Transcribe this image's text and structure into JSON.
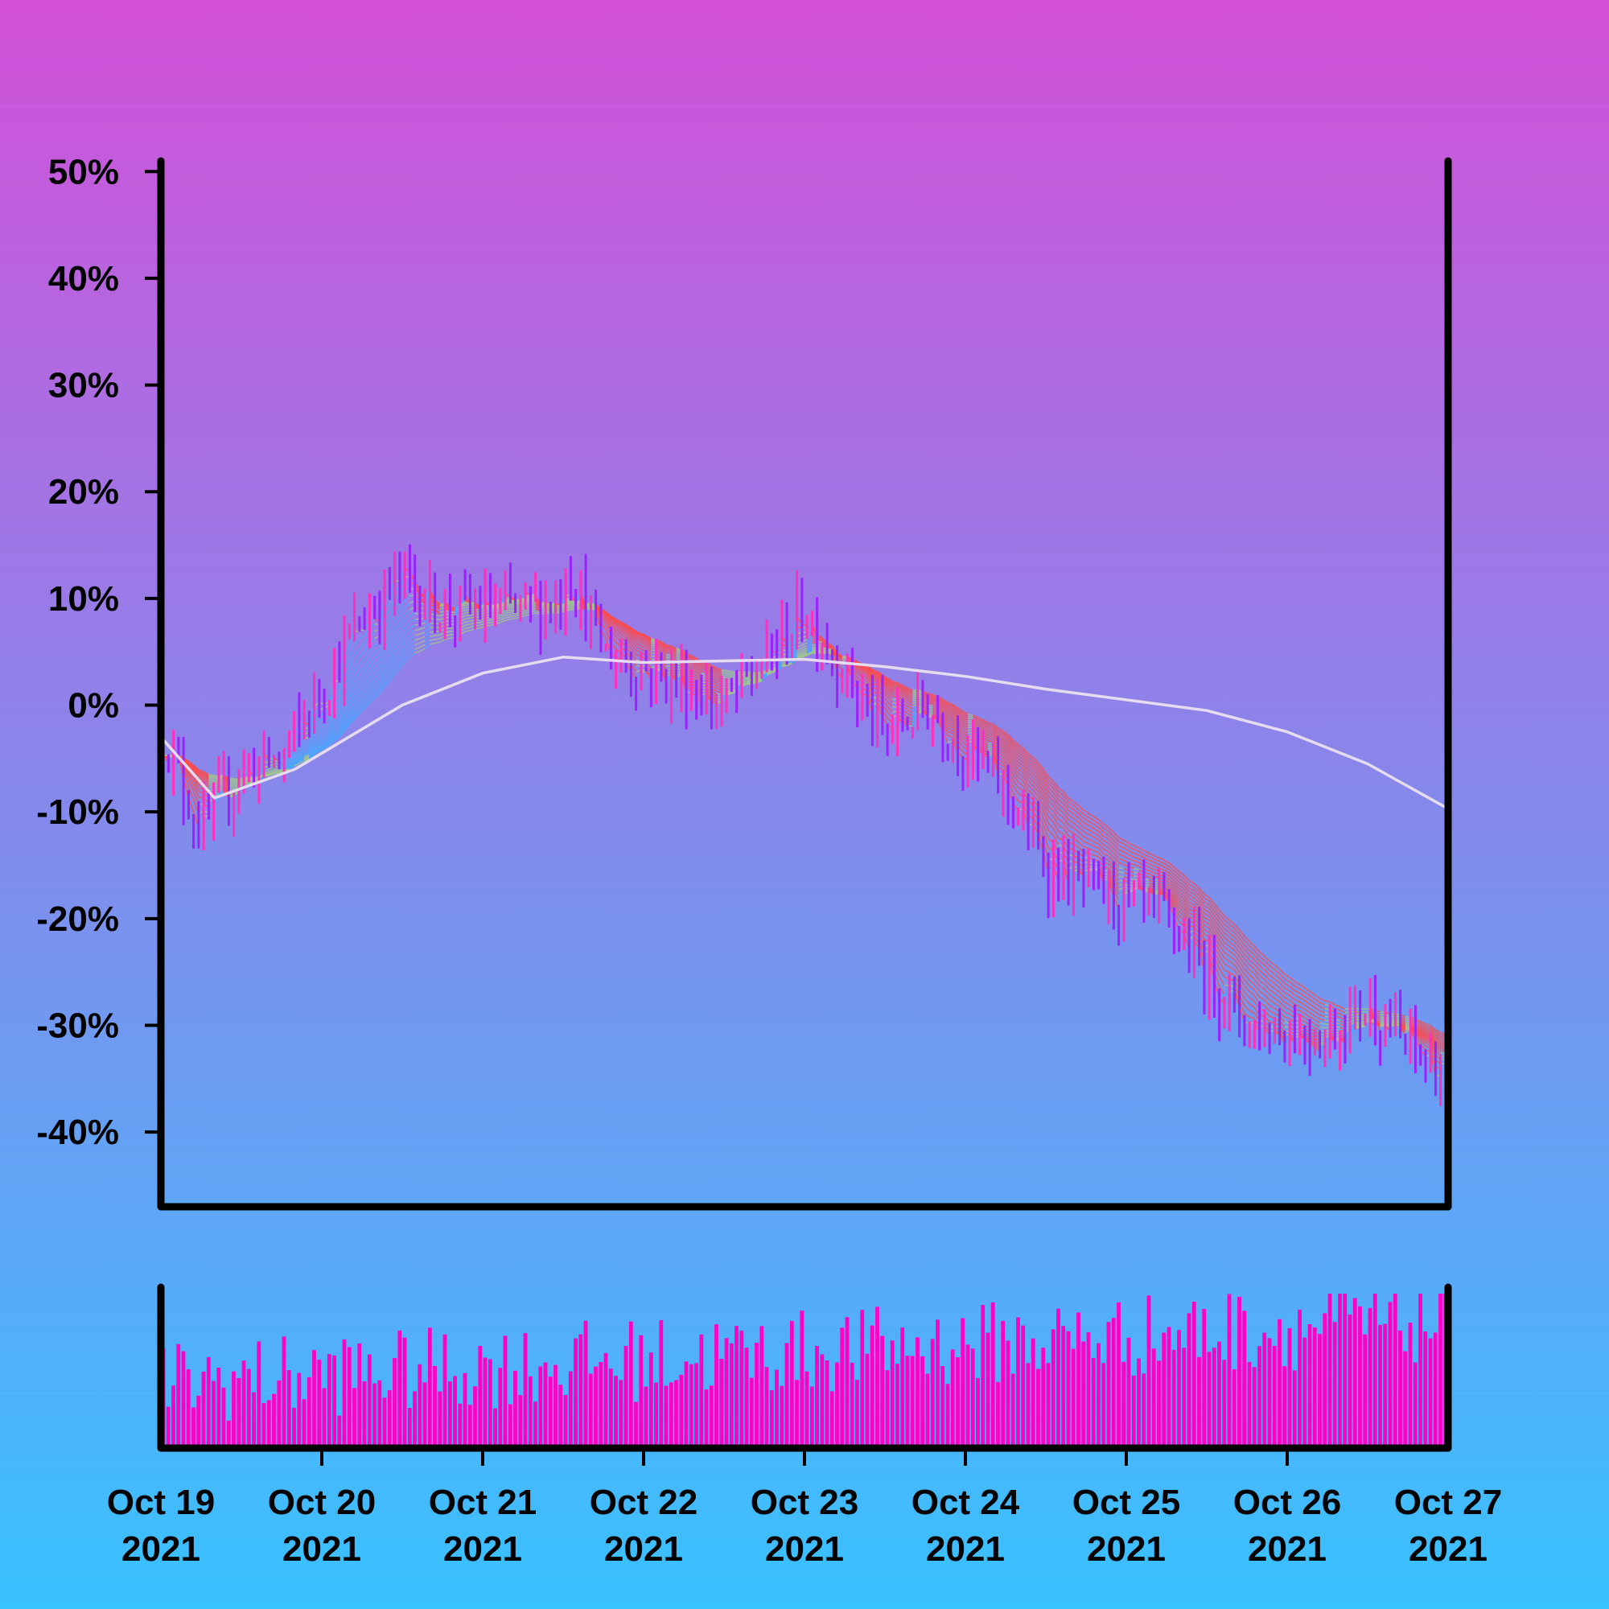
{
  "chart_data": {
    "type": "candlestick",
    "title": "",
    "ylabel": "",
    "xlabel": "",
    "ylim": [
      -47,
      51
    ],
    "y_ticks": [
      "50%",
      "40%",
      "30%",
      "20%",
      "10%",
      "0%",
      "-10%",
      "-20%",
      "-30%",
      "-40%"
    ],
    "y_tick_values": [
      50,
      40,
      30,
      20,
      10,
      0,
      -10,
      -20,
      -30,
      -40
    ],
    "x_range": [
      "2021-10-19",
      "2021-10-27"
    ],
    "x_ticks": [
      {
        "date": "2021-10-19",
        "line1": "Oct 19",
        "line2": "2021"
      },
      {
        "date": "2021-10-20",
        "line1": "Oct 20",
        "line2": "2021"
      },
      {
        "date": "2021-10-21",
        "line1": "Oct 21",
        "line2": "2021"
      },
      {
        "date": "2021-10-22",
        "line1": "Oct 22",
        "line2": "2021"
      },
      {
        "date": "2021-10-23",
        "line1": "Oct 23",
        "line2": "2021"
      },
      {
        "date": "2021-10-24",
        "line1": "Oct 24",
        "line2": "2021"
      },
      {
        "date": "2021-10-25",
        "line1": "Oct 25",
        "line2": "2021"
      },
      {
        "date": "2021-10-26",
        "line1": "Oct 26",
        "line2": "2021"
      },
      {
        "date": "2021-10-27",
        "line1": "Oct 27",
        "line2": "2021"
      }
    ],
    "price_path": [
      [
        "2021-10-19",
        -2
      ],
      [
        "2021-10-19 06:00",
        -12
      ],
      [
        "2021-10-19 12:00",
        -6
      ],
      [
        "2021-10-19 18:00",
        -5
      ],
      [
        "2021-10-20 06:00",
        8
      ],
      [
        "2021-10-20 12:00",
        12
      ],
      [
        "2021-10-20 18:00",
        9
      ],
      [
        "2021-10-21 06:00",
        9
      ],
      [
        "2021-10-21 12:00",
        10
      ],
      [
        "2021-10-21 12:00",
        14
      ],
      [
        "2021-10-21 18:00",
        5
      ],
      [
        "2021-10-22 06:00",
        2
      ],
      [
        "2021-10-22 12:00",
        0
      ],
      [
        "2021-10-22 18:00",
        4
      ],
      [
        "2021-10-23",
        9
      ],
      [
        "2021-10-23 06:00",
        3
      ],
      [
        "2021-10-23 12:00",
        -3
      ],
      [
        "2021-10-23 18:00",
        0
      ],
      [
        "2021-10-24 06:00",
        -8
      ],
      [
        "2021-10-24 12:00",
        -15
      ],
      [
        "2021-10-24 18:00",
        -17
      ],
      [
        "2021-10-25 06:00",
        -20
      ],
      [
        "2021-10-25 12:00",
        -25
      ],
      [
        "2021-10-25 18:00",
        -30
      ],
      [
        "2021-10-26 06:00",
        -31
      ],
      [
        "2021-10-26 12:00",
        -28
      ],
      [
        "2021-10-26 18:00",
        -32
      ],
      [
        "2021-10-27",
        -35
      ]
    ],
    "long_average": [
      [
        "2021-10-19",
        -3
      ],
      [
        "2021-10-19 08:00",
        -8.7
      ],
      [
        "2021-10-19 20:00",
        -6
      ],
      [
        "2021-10-20 12:00",
        0
      ],
      [
        "2021-10-21",
        3
      ],
      [
        "2021-10-21 12:00",
        4.5
      ],
      [
        "2021-10-22",
        4
      ],
      [
        "2021-10-23",
        4.3
      ],
      [
        "2021-10-23 12:00",
        3.6
      ],
      [
        "2021-10-24",
        2.7
      ],
      [
        "2021-10-24 12:00",
        1.5
      ],
      [
        "2021-10-25",
        0.5
      ],
      [
        "2021-10-25 12:00",
        -0.5
      ],
      [
        "2021-10-26",
        -2.5
      ],
      [
        "2021-10-26 12:00",
        -5.5
      ],
      [
        "2021-10-27",
        -9.7
      ]
    ],
    "series": [
      {
        "type": "candles"
      },
      {
        "type": "moving-average ribbon"
      },
      {
        "type": "long moving average"
      },
      {
        "type": "volume"
      }
    ],
    "grid": false,
    "legend": "none",
    "colors": {
      "background_top": "#d350d8",
      "background_bottom": "#38c2ff",
      "up_candle": "#ff2fbf",
      "down_candle": "#9b22ff",
      "ribbon_fall": "#ff4a4a",
      "ribbon_neutral": "#9fc58c",
      "ribbon_rise": "#4aa8ff",
      "long_average": "#e6dcf0",
      "volume": "#ff00c4",
      "axis": "#000000"
    }
  }
}
